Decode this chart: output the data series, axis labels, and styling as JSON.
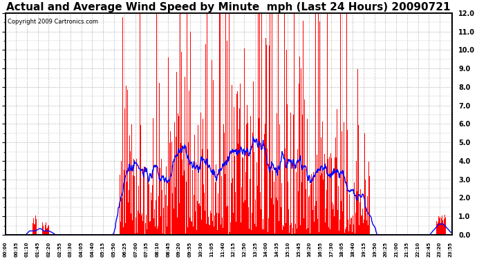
{
  "title": "Actual and Average Wind Speed by Minute  mph (Last 24 Hours) 20090721",
  "copyright": "Copyright 2009 Cartronics.com",
  "ylim": [
    0.0,
    12.0
  ],
  "yticks": [
    0.0,
    1.0,
    2.0,
    3.0,
    4.0,
    5.0,
    6.0,
    7.0,
    8.0,
    9.0,
    10.0,
    11.0,
    12.0
  ],
  "bar_color": "#FF0000",
  "line_color": "#0000FF",
  "background_color": "#FFFFFF",
  "grid_color": "#BBBBBB",
  "title_fontsize": 11,
  "copyright_fontsize": 6,
  "tick_interval_minutes": 35,
  "total_minutes": 1440
}
